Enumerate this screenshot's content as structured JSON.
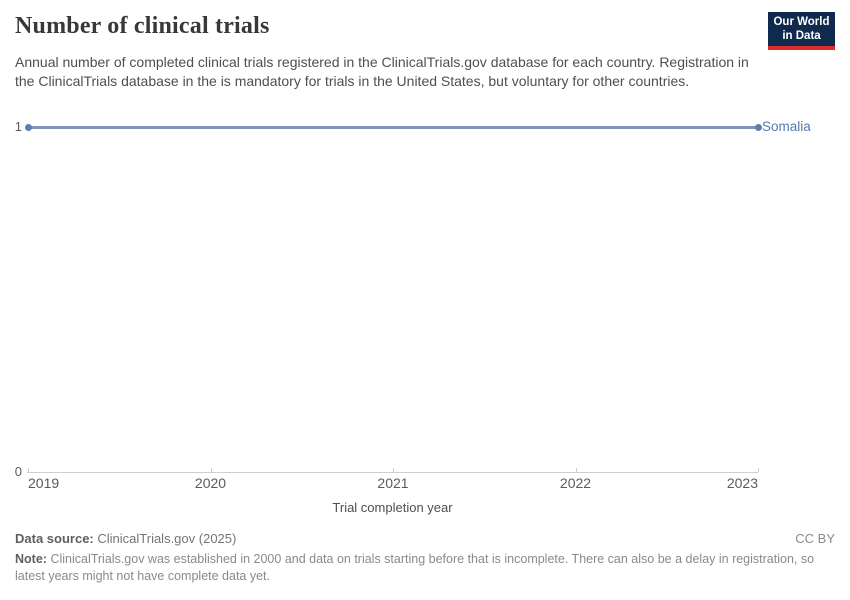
{
  "header": {
    "title": "Number of clinical trials",
    "subtitle": "Annual number of completed clinical trials registered in the ClinicalTrials.gov database for each country. Registration in the ClinicalTrials database in the is mandatory for trials in the United States, but voluntary for other countries.",
    "logo": {
      "line1": "Our World",
      "line2": "in Data"
    }
  },
  "chart_data": {
    "type": "line",
    "title": "Number of clinical trials",
    "x": [
      2019,
      2020,
      2021,
      2022,
      2023
    ],
    "series": [
      {
        "name": "Somalia",
        "values": [
          1,
          1,
          1,
          1,
          1
        ]
      }
    ],
    "xlabel": "Trial completion year",
    "ylabel": "",
    "xlim": [
      2019,
      2023
    ],
    "ylim": [
      0,
      1
    ],
    "xticks": [
      2019,
      2020,
      2021,
      2022,
      2023
    ],
    "yticks": [
      0,
      1
    ],
    "grid": false,
    "legend_position": "end-of-line"
  },
  "axes": {
    "y_tick_top": "1",
    "y_tick_bottom": "0",
    "x_label": "Trial completion year"
  },
  "series_label": "Somalia",
  "footer": {
    "data_source_label": "Data source:",
    "data_source_value": "ClinicalTrials.gov (2025)",
    "license": "CC BY",
    "note_label": "Note:",
    "note_text": "ClinicalTrials.gov was established in 2000 and data on trials starting before that is incomplete. There can also be a delay in registration, so latest years might not have complete data yet."
  },
  "colors": {
    "accent": "#4C6A9C",
    "line": "#7E96B8",
    "dot": "#5F7DB0",
    "label": "#5779B0",
    "axis": "#cfcfcf",
    "logo_bg": "#102a4e",
    "logo_stripe": "#dc2c2c"
  }
}
